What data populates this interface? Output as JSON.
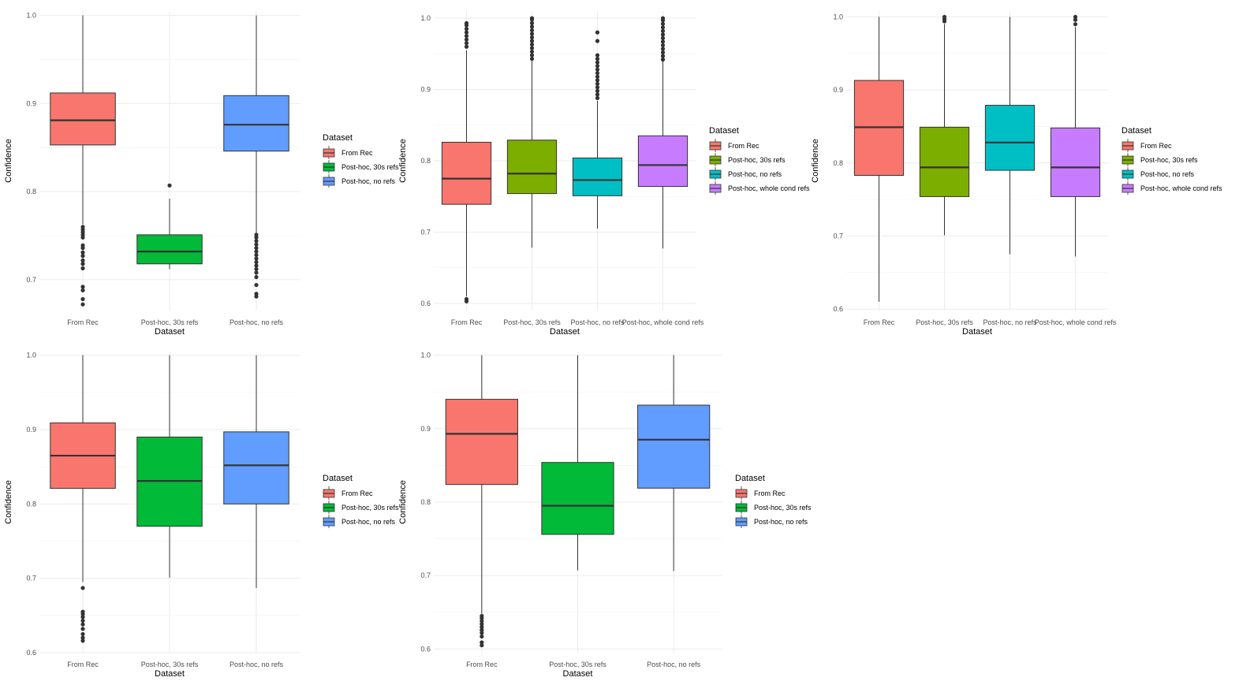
{
  "chart_data": [
    {
      "type": "box",
      "xlabel": "Dataset",
      "ylabel": "Confidence",
      "ylim": [
        0.665,
        1.005
      ],
      "yticks": [
        0.7,
        0.8,
        0.9,
        1.0
      ],
      "ytick_labels": [
        "0.7",
        "0.8",
        "0.9",
        "1.0"
      ],
      "grid": true,
      "legend": {
        "title": "Dataset",
        "position": "right"
      },
      "categories": [
        "From Rec",
        "Post-hoc, 30s refs",
        "Post-hoc, no refs"
      ],
      "series": [
        {
          "name": "From Rec",
          "color": "#F8766D",
          "min": 0.763,
          "q1": 0.853,
          "median": 0.881,
          "q3": 0.912,
          "max": 1.0,
          "outliers": [
            0.672,
            0.678,
            0.688,
            0.692,
            0.713,
            0.718,
            0.722,
            0.727,
            0.731,
            0.736,
            0.739,
            0.748,
            0.751,
            0.754,
            0.757,
            0.76
          ]
        },
        {
          "name": "Post-hoc, 30s refs",
          "color": "#00BA38",
          "min": 0.712,
          "q1": 0.718,
          "median": 0.732,
          "q3": 0.751,
          "max": 0.792,
          "outliers": [
            0.807
          ]
        },
        {
          "name": "Post-hoc, no refs",
          "color": "#619CFF",
          "min": 0.753,
          "q1": 0.846,
          "median": 0.876,
          "q3": 0.909,
          "max": 1.0,
          "outliers": [
            0.681,
            0.684,
            0.694,
            0.703,
            0.708,
            0.712,
            0.716,
            0.72,
            0.724,
            0.728,
            0.732,
            0.736,
            0.74,
            0.744,
            0.748,
            0.751
          ]
        }
      ]
    },
    {
      "type": "box",
      "xlabel": "Dataset",
      "ylabel": "Confidence",
      "ylim": [
        0.59,
        1.01
      ],
      "yticks": [
        0.6,
        0.7,
        0.8,
        0.9,
        1.0
      ],
      "ytick_labels": [
        "0.6",
        "0.7",
        "0.8",
        "0.9",
        "1.0"
      ],
      "grid": true,
      "legend": {
        "title": "Dataset",
        "position": "right"
      },
      "categories": [
        "From Rec",
        "Post-hoc, 30s refs",
        "Post-hoc, no refs",
        "Post-hoc, whole cond refs"
      ],
      "series": [
        {
          "name": "From Rec",
          "color": "#F8766D",
          "min": 0.61,
          "q1": 0.739,
          "median": 0.775,
          "q3": 0.826,
          "max": 0.955,
          "outliers": [
            0.603,
            0.606,
            0.96,
            0.965,
            0.97,
            0.975,
            0.98,
            0.985,
            0.99,
            0.993
          ]
        },
        {
          "name": "Post-hoc, 30s refs",
          "color": "#7CAE00",
          "min": 0.678,
          "q1": 0.754,
          "median": 0.782,
          "q3": 0.829,
          "max": 0.94,
          "outliers": [
            0.943,
            0.948,
            0.953,
            0.958,
            0.963,
            0.968,
            0.973,
            0.978,
            0.983,
            0.988,
            0.993,
            0.998,
            1.0
          ]
        },
        {
          "name": "Post-hoc, no refs",
          "color": "#00BFC4",
          "min": 0.705,
          "q1": 0.751,
          "median": 0.773,
          "q3": 0.804,
          "max": 0.884,
          "outliers": [
            0.888,
            0.893,
            0.898,
            0.903,
            0.908,
            0.913,
            0.918,
            0.923,
            0.928,
            0.933,
            0.938,
            0.943,
            0.948,
            0.968,
            0.98
          ]
        },
        {
          "name": "Post-hoc, whole cond refs",
          "color": "#C77CFF",
          "min": 0.677,
          "q1": 0.764,
          "median": 0.794,
          "q3": 0.835,
          "max": 0.94,
          "outliers": [
            0.942,
            0.947,
            0.952,
            0.957,
            0.962,
            0.967,
            0.972,
            0.977,
            0.982,
            0.987,
            0.992,
            0.997,
            1.0
          ]
        }
      ]
    },
    {
      "type": "box",
      "xlabel": "Dataset",
      "ylabel": "Confidence",
      "ylim": [
        0.598,
        1.008
      ],
      "yticks": [
        0.6,
        0.7,
        0.8,
        0.9,
        1.0
      ],
      "ytick_labels": [
        "0.6",
        "0.7",
        "0.8",
        "0.9",
        "1.0"
      ],
      "grid": true,
      "legend": {
        "title": "Dataset",
        "position": "right"
      },
      "categories": [
        "From Rec",
        "Post-hoc, 30s refs",
        "Post-hoc, no refs",
        "Post-hoc, whole cond refs"
      ],
      "series": [
        {
          "name": "From Rec",
          "color": "#F8766D",
          "min": 0.61,
          "q1": 0.783,
          "median": 0.849,
          "q3": 0.913,
          "max": 1.0,
          "outliers": []
        },
        {
          "name": "Post-hoc, 30s refs",
          "color": "#7CAE00",
          "min": 0.701,
          "q1": 0.754,
          "median": 0.794,
          "q3": 0.849,
          "max": 0.99,
          "outliers": [
            0.994,
            0.997,
            1.0
          ]
        },
        {
          "name": "Post-hoc, no refs",
          "color": "#00BFC4",
          "min": 0.675,
          "q1": 0.79,
          "median": 0.828,
          "q3": 0.879,
          "max": 1.0,
          "outliers": []
        },
        {
          "name": "Post-hoc, whole cond refs",
          "color": "#C77CFF",
          "min": 0.672,
          "q1": 0.754,
          "median": 0.794,
          "q3": 0.848,
          "max": 0.986,
          "outliers": [
            0.99,
            0.996,
            1.0
          ]
        }
      ]
    },
    {
      "type": "box",
      "xlabel": "Dataset",
      "ylabel": "Confidence",
      "ylim": [
        0.6,
        1.005
      ],
      "yticks": [
        0.6,
        0.7,
        0.8,
        0.9,
        1.0
      ],
      "ytick_labels": [
        "0.6",
        "0.7",
        "0.8",
        "0.9",
        "1.0"
      ],
      "grid": true,
      "legend": {
        "title": "Dataset",
        "position": "right"
      },
      "categories": [
        "From Rec",
        "Post-hoc, 30s refs",
        "Post-hoc, no refs"
      ],
      "series": [
        {
          "name": "From Rec",
          "color": "#F8766D",
          "min": 0.695,
          "q1": 0.821,
          "median": 0.865,
          "q3": 0.909,
          "max": 1.0,
          "outliers": [
            0.616,
            0.62,
            0.625,
            0.632,
            0.638,
            0.643,
            0.648,
            0.652,
            0.655,
            0.687
          ]
        },
        {
          "name": "Post-hoc, 30s refs",
          "color": "#00BA38",
          "min": 0.701,
          "q1": 0.77,
          "median": 0.831,
          "q3": 0.89,
          "max": 1.0,
          "outliers": []
        },
        {
          "name": "Post-hoc, no refs",
          "color": "#619CFF",
          "min": 0.687,
          "q1": 0.8,
          "median": 0.852,
          "q3": 0.897,
          "max": 1.0,
          "outliers": []
        }
      ]
    },
    {
      "type": "box",
      "xlabel": "Dataset",
      "ylabel": "Confidence",
      "ylim": [
        0.595,
        1.005
      ],
      "yticks": [
        0.6,
        0.7,
        0.8,
        0.9,
        1.0
      ],
      "ytick_labels": [
        "0.6",
        "0.7",
        "0.8",
        "0.9",
        "1.0"
      ],
      "grid": true,
      "legend": {
        "title": "Dataset",
        "position": "right"
      },
      "categories": [
        "From Rec",
        "Post-hoc, 30s refs",
        "Post-hoc, no refs"
      ],
      "series": [
        {
          "name": "From Rec",
          "color": "#F8766D",
          "min": 0.648,
          "q1": 0.824,
          "median": 0.893,
          "q3": 0.94,
          "max": 1.0,
          "outliers": [
            0.605,
            0.609,
            0.617,
            0.622,
            0.626,
            0.63,
            0.634,
            0.638,
            0.642,
            0.645
          ]
        },
        {
          "name": "Post-hoc, 30s refs",
          "color": "#00BA38",
          "min": 0.707,
          "q1": 0.756,
          "median": 0.795,
          "q3": 0.854,
          "max": 1.0,
          "outliers": []
        },
        {
          "name": "Post-hoc, no refs",
          "color": "#619CFF",
          "min": 0.706,
          "q1": 0.819,
          "median": 0.885,
          "q3": 0.932,
          "max": 1.0,
          "outliers": []
        }
      ]
    }
  ]
}
